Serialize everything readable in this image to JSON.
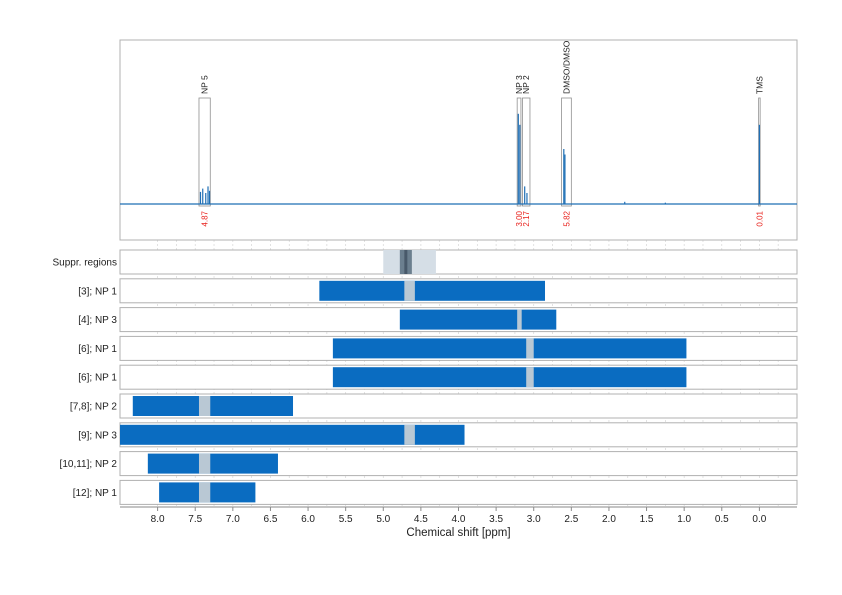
{
  "chart_data": {
    "type": "nmr-spectrum-with-suppression-regions",
    "xlabel": "Chemical shift [ppm]",
    "xlim": [
      8.5,
      -0.5
    ],
    "x_reversed": true,
    "x_ticks": [
      8.0,
      7.5,
      7.0,
      6.5,
      6.0,
      5.5,
      5.0,
      4.5,
      4.0,
      3.5,
      3.0,
      2.5,
      2.0,
      1.5,
      1.0,
      0.5,
      0.0
    ],
    "x_tick_labels": [
      "8.0",
      "7.5",
      "7.0",
      "6.5",
      "6.0",
      "5.5",
      "5.0",
      "4.5",
      "4.0",
      "3.5",
      "3.0",
      "2.5",
      "2.0",
      "1.5",
      "1.0",
      "0.5",
      "0.0"
    ],
    "grid": true,
    "line_color": "#1f6fb5",
    "bar_color": "#0a6cc1",
    "overlap_color": "#b9c8d4",
    "suppr_outer_color": "#d5dee6",
    "suppr_inner_color": "#6b7f8f",
    "integral_color": "#e8201b",
    "spectrum": {
      "peaks": [
        {
          "label": "NP 5",
          "from": 7.45,
          "to": 7.3,
          "integral_label": "4.87"
        },
        {
          "label": "NP 3",
          "from": 3.22,
          "to": 3.17,
          "integral_label": "3.00"
        },
        {
          "label": "NP 2",
          "from": 3.15,
          "to": 3.05,
          "integral_label": "2.17"
        },
        {
          "label": "DMSO/DMSO",
          "from": 2.63,
          "to": 2.5,
          "integral_label": "5.82"
        },
        {
          "label": "TMS",
          "from": 0.01,
          "to": -0.01,
          "integral_label": "0.01"
        }
      ],
      "signals": [
        {
          "x": 7.43,
          "h": 0.11
        },
        {
          "x": 7.4,
          "h": 0.14
        },
        {
          "x": 7.36,
          "h": 0.1
        },
        {
          "x": 7.33,
          "h": 0.16
        },
        {
          "x": 7.31,
          "h": 0.12
        },
        {
          "x": 3.205,
          "h": 0.82
        },
        {
          "x": 3.185,
          "h": 0.72
        },
        {
          "x": 3.12,
          "h": 0.16
        },
        {
          "x": 3.09,
          "h": 0.1
        },
        {
          "x": 2.6,
          "h": 0.5
        },
        {
          "x": 2.585,
          "h": 0.45
        },
        {
          "x": 1.79,
          "h": 0.02
        },
        {
          "x": 1.25,
          "h": 0.012
        },
        {
          "x": 0.0,
          "h": 0.72
        }
      ]
    },
    "suppression": {
      "label": "Suppr. regions",
      "outer": [
        5.0,
        4.3
      ],
      "inner": [
        4.78,
        4.62
      ],
      "core": [
        4.72,
        4.68
      ]
    },
    "rows": [
      {
        "label": "[3]; NP 1",
        "from": 5.85,
        "to": 2.85,
        "overlaps": [
          [
            4.72,
            4.58
          ]
        ]
      },
      {
        "label": "[4]; NP 3",
        "from": 4.78,
        "to": 2.7,
        "overlaps": [
          [
            3.22,
            3.16
          ]
        ]
      },
      {
        "label": "[6]; NP 1",
        "from": 5.67,
        "to": 0.97,
        "overlaps": [
          [
            3.1,
            3.0
          ]
        ]
      },
      {
        "label": "[6]; NP 1",
        "from": 5.67,
        "to": 0.97,
        "overlaps": [
          [
            3.1,
            3.0
          ]
        ]
      },
      {
        "label": "[7,8]; NP 2",
        "from": 8.33,
        "to": 6.2,
        "overlaps": [
          [
            7.45,
            7.3
          ]
        ]
      },
      {
        "label": "[9]; NP 3",
        "from": 8.5,
        "to": 3.92,
        "overlaps": [
          [
            4.72,
            4.58
          ]
        ]
      },
      {
        "label": "[10,11]; NP 2",
        "from": 8.13,
        "to": 6.4,
        "overlaps": [
          [
            7.45,
            7.3
          ]
        ]
      },
      {
        "label": "[12]; NP 1",
        "from": 7.98,
        "to": 6.7,
        "overlaps": [
          [
            7.45,
            7.3
          ]
        ]
      }
    ]
  }
}
